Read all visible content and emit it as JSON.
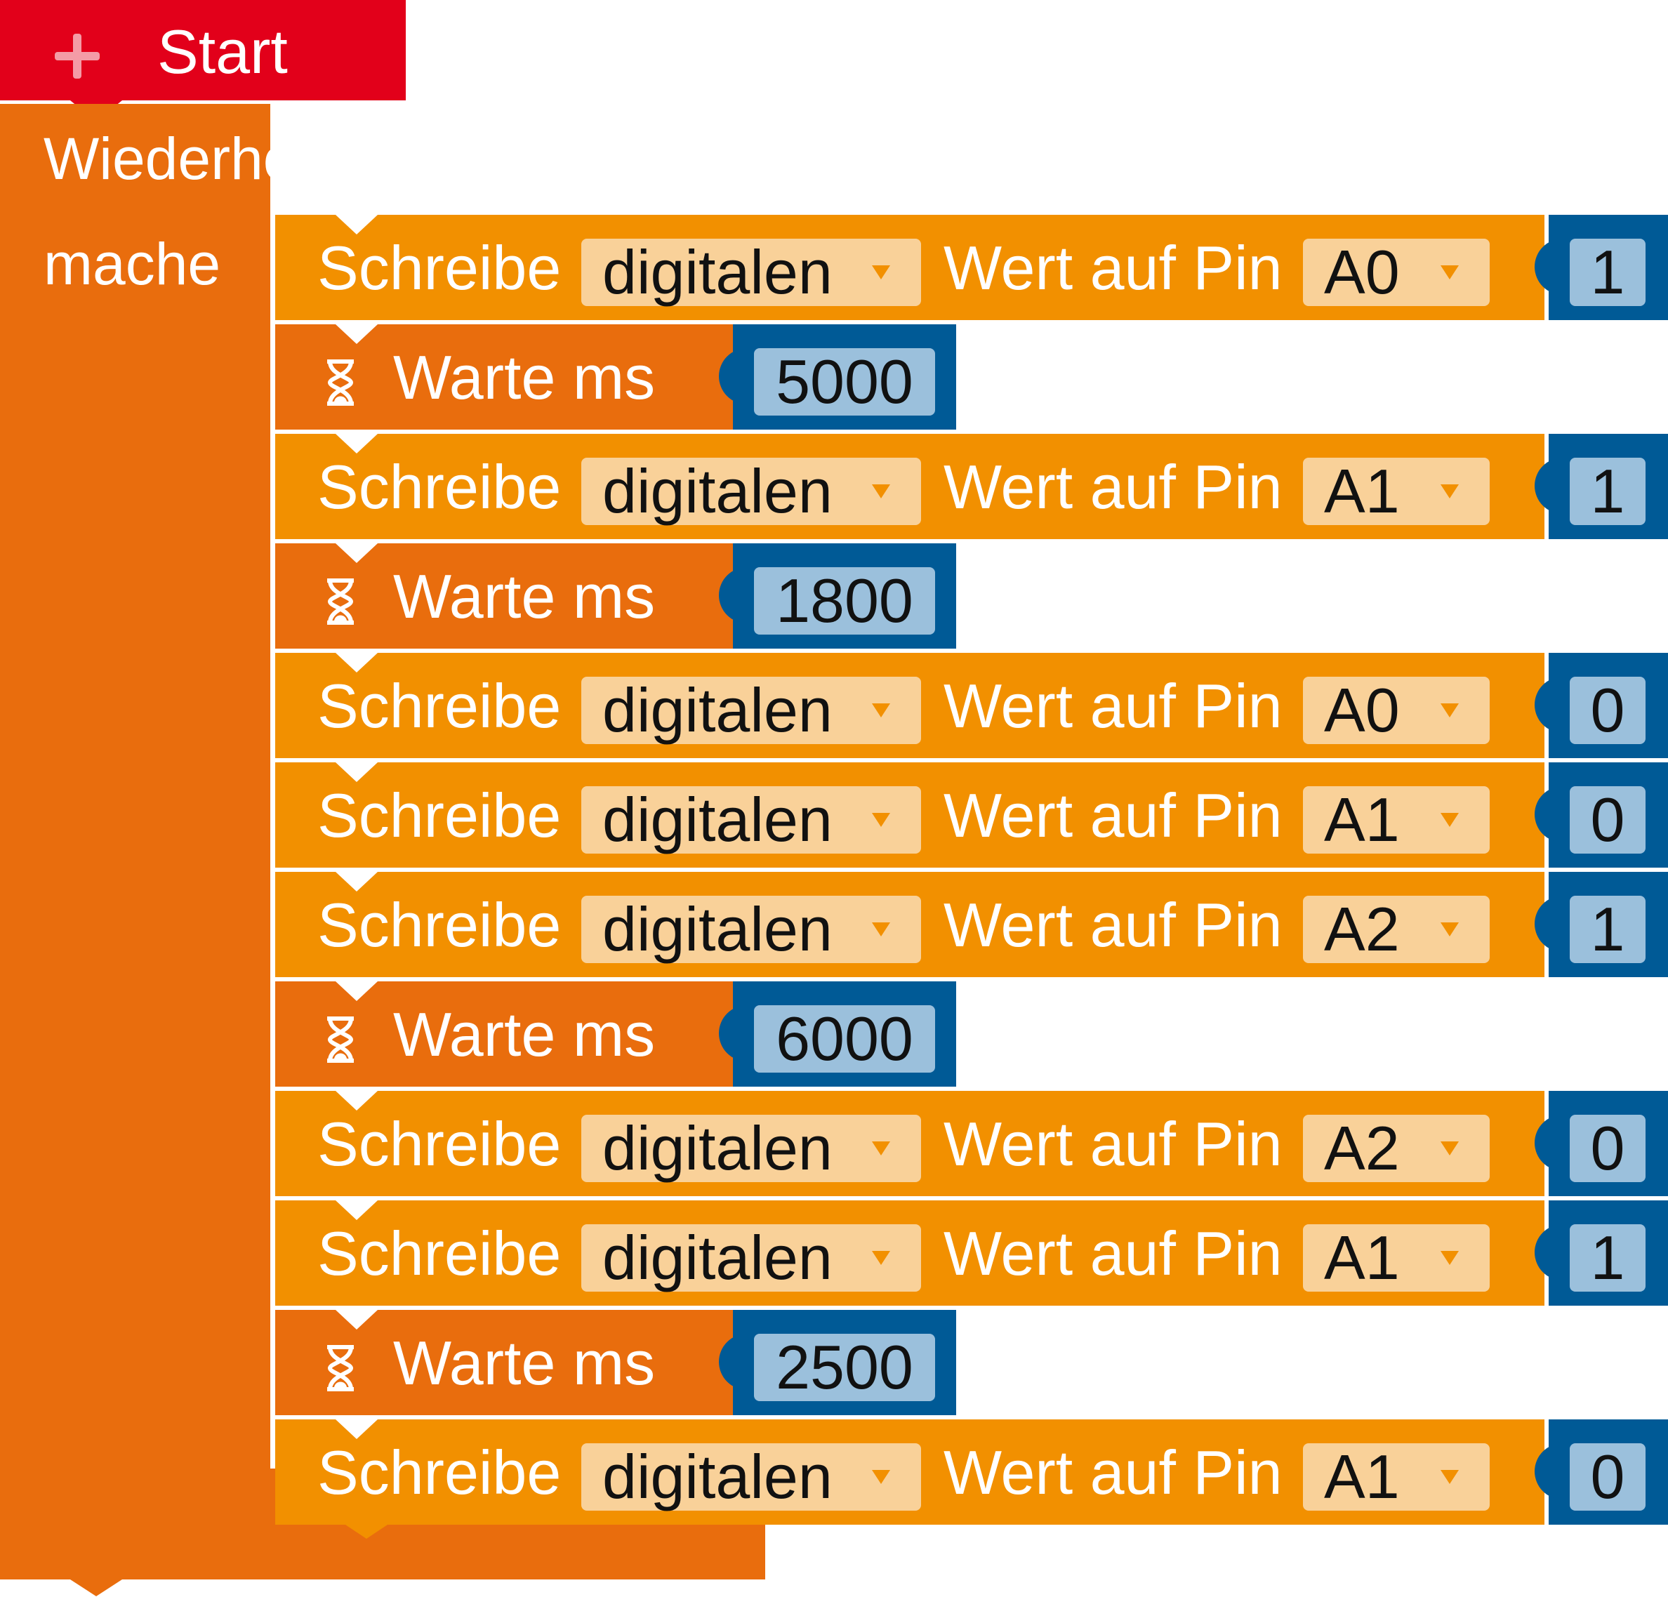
{
  "start_block": {
    "label": "Start"
  },
  "loop_block": {
    "title": "Wiederhole unendlich oft",
    "do_label": "mache"
  },
  "write_labels": {
    "write": "Schreibe",
    "value_on_pin": "Wert auf Pin"
  },
  "wait_label": "Warte ms",
  "colors": {
    "start": "#e2001a",
    "loop": "#e96d0d",
    "write_block": "#f29000",
    "dropdown": "#f9d199",
    "number_block": "#005a96",
    "number_field": "#9bc0dc"
  },
  "statements": [
    {
      "type": "write",
      "mode": "digitalen",
      "pin": "A0",
      "value": "1"
    },
    {
      "type": "wait",
      "ms": "5000"
    },
    {
      "type": "write",
      "mode": "digitalen",
      "pin": "A1",
      "value": "1"
    },
    {
      "type": "wait",
      "ms": "1800"
    },
    {
      "type": "write",
      "mode": "digitalen",
      "pin": "A0",
      "value": "0"
    },
    {
      "type": "write",
      "mode": "digitalen",
      "pin": "A1",
      "value": "0"
    },
    {
      "type": "write",
      "mode": "digitalen",
      "pin": "A2",
      "value": "1"
    },
    {
      "type": "wait",
      "ms": "6000"
    },
    {
      "type": "write",
      "mode": "digitalen",
      "pin": "A2",
      "value": "0"
    },
    {
      "type": "write",
      "mode": "digitalen",
      "pin": "A1",
      "value": "1"
    },
    {
      "type": "wait",
      "ms": "2500"
    },
    {
      "type": "write",
      "mode": "digitalen",
      "pin": "A1",
      "value": "0"
    }
  ]
}
